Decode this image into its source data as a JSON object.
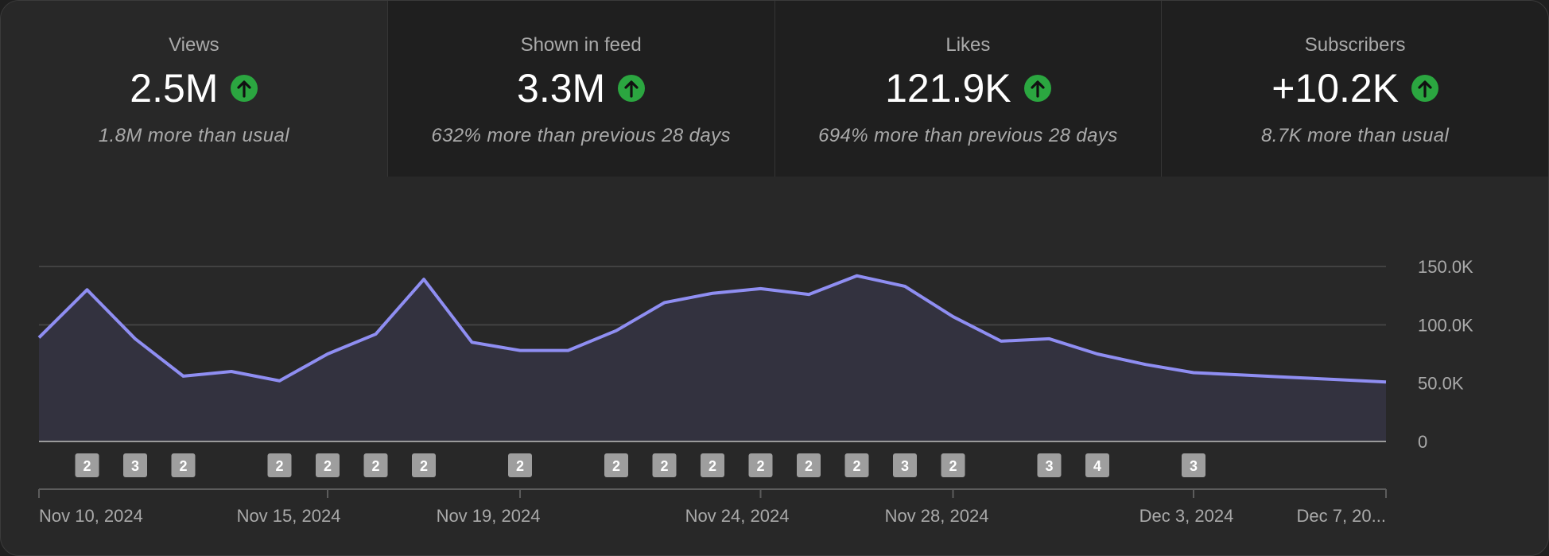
{
  "cards": [
    {
      "title": "Views",
      "value": "2.5M",
      "sub": "1.8M more than usual",
      "trend_icon": "arrow-up-circle-icon"
    },
    {
      "title": "Shown in feed",
      "value": "3.3M",
      "sub": "632% more than previous 28 days",
      "trend_icon": "arrow-up-circle-icon"
    },
    {
      "title": "Likes",
      "value": "121.9K",
      "sub": "694% more than previous 28 days",
      "trend_icon": "arrow-up-circle-icon"
    },
    {
      "title": "Subscribers",
      "value": "+10.2K",
      "sub": "8.7K more than usual",
      "trend_icon": "arrow-up-circle-icon"
    }
  ],
  "colors": {
    "line": "#8f8ef2",
    "trend_up": "#2ba640",
    "badge": "#9e9e9e"
  },
  "chart_data": {
    "type": "area",
    "title": "",
    "xlabel": "",
    "ylabel": "",
    "ylim": [
      0,
      150000
    ],
    "y_ticks": [
      "150.0K",
      "100.0K",
      "50.0K",
      "0"
    ],
    "x_tick_labels": [
      "Nov 10, 2024",
      "Nov 15, 2024",
      "Nov 19, 2024",
      "Nov 24, 2024",
      "Nov 28, 2024",
      "Dec 3, 2024",
      "Dec 7, 20..."
    ],
    "x": [
      "Nov 9",
      "Nov 10",
      "Nov 11",
      "Nov 12",
      "Nov 13",
      "Nov 14",
      "Nov 15",
      "Nov 16",
      "Nov 17",
      "Nov 18",
      "Nov 19",
      "Nov 20",
      "Nov 21",
      "Nov 22",
      "Nov 23",
      "Nov 24",
      "Nov 25",
      "Nov 26",
      "Nov 27",
      "Nov 28",
      "Nov 29",
      "Nov 30",
      "Dec 1",
      "Dec 2",
      "Dec 3",
      "Dec 4",
      "Dec 5",
      "Dec 6",
      "Dec 7"
    ],
    "values": [
      89000,
      130000,
      88000,
      56000,
      60000,
      52000,
      75000,
      92000,
      139000,
      85000,
      78000,
      78000,
      95000,
      119000,
      127000,
      131000,
      126000,
      142000,
      133000,
      107000,
      86000,
      88000,
      75000,
      66000,
      59000,
      57000,
      55000,
      53000,
      51000
    ],
    "grid": true,
    "badges": [
      {
        "x": "Nov 10",
        "count": "2"
      },
      {
        "x": "Nov 11",
        "count": "3"
      },
      {
        "x": "Nov 12",
        "count": "2"
      },
      {
        "x": "Nov 14",
        "count": "2"
      },
      {
        "x": "Nov 15",
        "count": "2"
      },
      {
        "x": "Nov 16",
        "count": "2"
      },
      {
        "x": "Nov 17",
        "count": "2"
      },
      {
        "x": "Nov 19",
        "count": "2"
      },
      {
        "x": "Nov 21",
        "count": "2"
      },
      {
        "x": "Nov 22",
        "count": "2"
      },
      {
        "x": "Nov 23",
        "count": "2"
      },
      {
        "x": "Nov 24",
        "count": "2"
      },
      {
        "x": "Nov 25",
        "count": "2"
      },
      {
        "x": "Nov 26",
        "count": "2"
      },
      {
        "x": "Nov 27",
        "count": "3"
      },
      {
        "x": "Nov 28",
        "count": "2"
      },
      {
        "x": "Nov 30",
        "count": "3"
      },
      {
        "x": "Dec 1",
        "count": "4"
      },
      {
        "x": "Dec 3",
        "count": "3"
      }
    ]
  }
}
